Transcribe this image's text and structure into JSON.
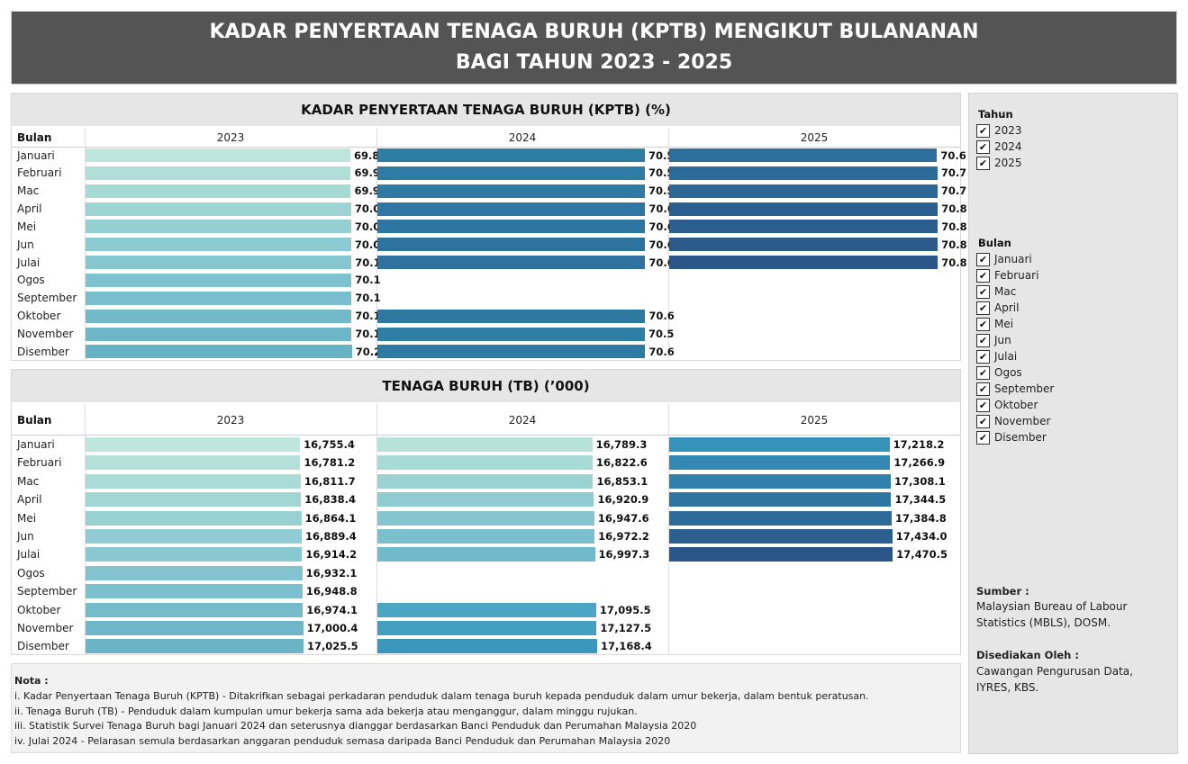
{
  "header": {
    "title_line1": "KADAR PENYERTAAN TENAGA BURUH (KPTB) MENGIKUT BULANANAN",
    "title_line2": "BAGI TAHUN 2023 - 2025"
  },
  "months": [
    "Januari",
    "Februari",
    "Mac",
    "April",
    "Mei",
    "Jun",
    "Julai",
    "Ogos",
    "September",
    "Oktober",
    "November",
    "Disember"
  ],
  "row_header": "Bulan",
  "colors": {
    "2023": [
      "#bde5dc",
      "#b1dfd8",
      "#a6dad5",
      "#9dd4d3",
      "#94cfd2",
      "#8ccbd1",
      "#85c6d0",
      "#7ec2cf",
      "#78becc",
      "#72bac9",
      "#6db6c7",
      "#68b2c5"
    ],
    "2024": [
      "#2e7ea4",
      "#2e7ca4",
      "#2f7aa3",
      "#2f77a2",
      "#2e75a1",
      "#2e73a0",
      "#2f729f",
      "#2f729f",
      "#2f729f",
      "#2f789f",
      "#2f7fa5",
      "#2d7aa3"
    ],
    "2025": [
      "#2d6f9d",
      "#2c6b9a",
      "#2c6796",
      "#2b5f8f",
      "#2b5d8d",
      "#2b5a8b",
      "#2a5788"
    ],
    "tb2023": [
      "#bfe6dd",
      "#b4e0d9",
      "#aadbd6",
      "#a1d6d4",
      "#98d1d2",
      "#90ccd1",
      "#88c8d0",
      "#81c4cf",
      "#7bc0cd",
      "#75bccb",
      "#70b8c9",
      "#6ab4c6"
    ],
    "tb2024": [
      "#b6e2da",
      "#a9dbd6",
      "#9ad2d2",
      "#8fcbd0",
      "#84c5cf",
      "#79bfcd",
      "#70bacb",
      "#70bacb",
      "#70bacb",
      "#4aa6c2",
      "#43a0bf",
      "#3b97bb"
    ],
    "tb2025": [
      "#3593b9",
      "#3389b2",
      "#317fab",
      "#2f75a2",
      "#2d6b98",
      "#2b5f8e",
      "#2a5587"
    ]
  },
  "chart_data": [
    {
      "type": "bar",
      "title": "KADAR PENYERTAAN TENAGA BURUH (KPTB) (%)",
      "categories": [
        "Januari",
        "Februari",
        "Mac",
        "April",
        "Mei",
        "Jun",
        "Julai",
        "Ogos",
        "September",
        "Oktober",
        "November",
        "Disember"
      ],
      "series": [
        {
          "name": "2023",
          "values": [
            "69.8",
            "69.9",
            "69.9",
            "70.0",
            "70.0",
            "70.0",
            "70.1",
            "70.1",
            "70.1",
            "70.1",
            "70.1",
            "70.2"
          ]
        },
        {
          "name": "2024",
          "values": [
            "70.5",
            "70.5",
            "70.5",
            "70.6",
            "70.6",
            "70.6",
            "70.6",
            null,
            null,
            "70.6",
            "70.5",
            "70.6"
          ]
        },
        {
          "name": "2025",
          "values": [
            "70.6",
            "70.7",
            "70.7",
            "70.8",
            "70.8",
            "70.8",
            "70.8",
            null,
            null,
            null,
            null,
            null
          ]
        }
      ],
      "xlim": [
        0,
        80
      ]
    },
    {
      "type": "bar",
      "title": "TENAGA BURUH (TB) (’000)",
      "categories": [
        "Januari",
        "Februari",
        "Mac",
        "April",
        "Mei",
        "Jun",
        "Julai",
        "Ogos",
        "September",
        "Oktober",
        "November",
        "Disember"
      ],
      "series": [
        {
          "name": "2023",
          "values": [
            "16,755.4",
            "16,781.2",
            "16,811.7",
            "16,838.4",
            "16,864.1",
            "16,889.4",
            "16,914.2",
            "16,932.1",
            "16,948.8",
            "16,974.1",
            "17,000.4",
            "17,025.5"
          ]
        },
        {
          "name": "2024",
          "values": [
            "16,789.3",
            "16,822.6",
            "16,853.1",
            "16,920.9",
            "16,947.6",
            "16,972.2",
            "16,997.3",
            null,
            null,
            "17,095.5",
            "17,127.5",
            "17,168.4"
          ]
        },
        {
          "name": "2025",
          "values": [
            "17,218.2",
            "17,266.9",
            "17,308.1",
            "17,344.5",
            "17,384.8",
            "17,434.0",
            "17,470.5",
            null,
            null,
            null,
            null,
            null
          ]
        }
      ],
      "xlim": [
        0,
        19000
      ]
    }
  ],
  "notes": {
    "title": "Nota :",
    "lines": [
      "i. Kadar Penyertaan Tenaga Buruh (KPTB) - Ditakrifkan sebagai perkadaran penduduk dalam tenaga buruh kepada penduduk dalam umur bekerja, dalam bentuk peratusan.",
      "ii. Tenaga Buruh (TB) - Penduduk dalam kumpulan umur bekerja sama ada bekerja atau menganggur, dalam minggu rujukan.",
      "iii. Statistik Survei Tenaga Buruh bagi Januari 2024 dan seterusnya dianggar berdasarkan Banci Penduduk dan Perumahan Malaysia 2020",
      "iv. Julai 2024 - Pelarasan semula berdasarkan anggaran penduduk semasa daripada Banci Penduduk dan Perumahan Malaysia 2020"
    ]
  },
  "filters": {
    "tahun_title": "Tahun",
    "tahun": [
      "2023",
      "2024",
      "2025"
    ],
    "bulan_title": "Bulan",
    "bulan": [
      "Januari",
      "Februari",
      "Mac",
      "April",
      "Mei",
      "Jun",
      "Julai",
      "Ogos",
      "September",
      "Oktober",
      "November",
      "Disember"
    ],
    "checkmark": "✔"
  },
  "source": {
    "title": "Sumber :",
    "text": "Malaysian Bureau of Labour Statistics (MBLS), DOSM.",
    "prepared_title": "Disediakan Oleh :",
    "prepared_text": "Cawangan Pengurusan Data, IYRES, KBS."
  }
}
